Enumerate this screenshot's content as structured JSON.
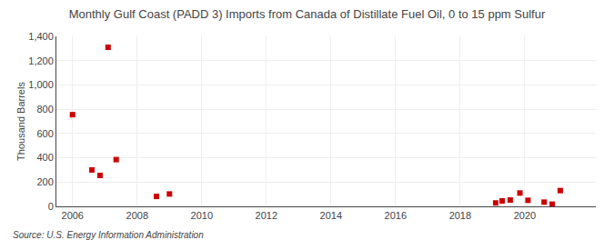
{
  "chart_data": {
    "type": "scatter",
    "title": "Monthly Gulf Coast (PADD 3) Imports from Canada of Distillate Fuel Oil, 0 to 15 ppm Sulfur",
    "ylabel": "Thousand Barrels",
    "annotations": [
      "Source: U.S. Energy Information Administration"
    ],
    "x": [
      2006.0,
      2006.6,
      2006.85,
      2007.1,
      2007.35,
      2008.6,
      2009.0,
      2019.1,
      2019.3,
      2019.55,
      2019.85,
      2020.1,
      2020.6,
      2020.85,
      2021.1
    ],
    "values": [
      755,
      300,
      255,
      1310,
      385,
      82,
      102,
      28,
      45,
      52,
      110,
      50,
      35,
      18,
      130
    ],
    "color": "#cc0000",
    "marker": "square",
    "xlim": [
      2005.5,
      2022.2
    ],
    "xticks": [
      2006,
      2008,
      2010,
      2012,
      2014,
      2016,
      2018,
      2020
    ],
    "ylim": [
      0,
      1400
    ],
    "yticks": [
      0,
      200,
      400,
      600,
      800,
      {
        "value": 1000,
        "label": "1,000"
      },
      {
        "value": 1200,
        "label": "1,200"
      },
      {
        "value": 1400,
        "label": "1,400"
      }
    ],
    "grid": true
  }
}
